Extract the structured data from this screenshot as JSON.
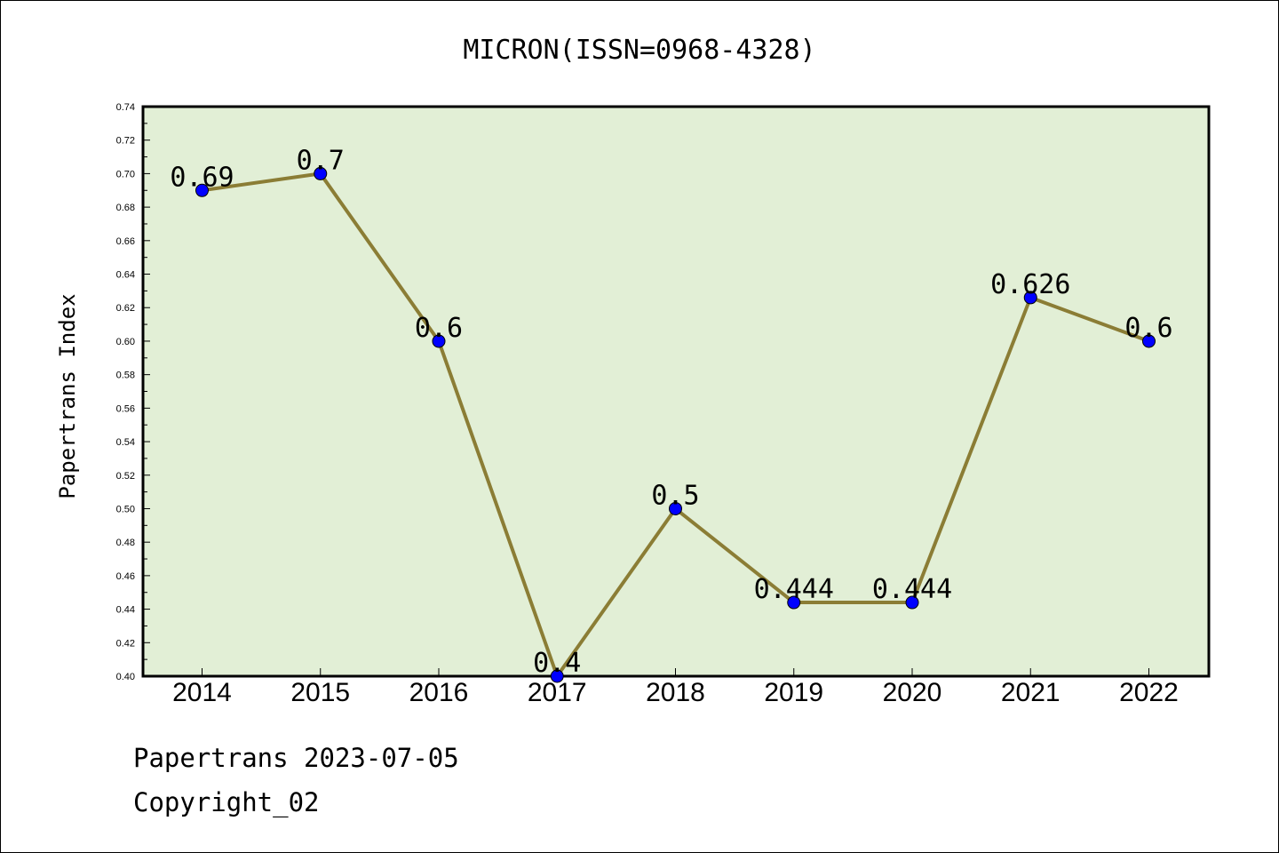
{
  "chart_data": {
    "type": "line",
    "title": "MICRON(ISSN=0968-4328)",
    "xlabel": "",
    "ylabel": "Papertrans Index",
    "categories": [
      "2014",
      "2015",
      "2016",
      "2017",
      "2018",
      "2019",
      "2020",
      "2021",
      "2022"
    ],
    "series": [
      {
        "values": [
          0.69,
          0.7,
          0.6,
          0.4,
          0.5,
          0.444,
          0.444,
          0.626,
          0.6
        ],
        "labels": [
          "0.69",
          "0.7",
          "0.6",
          "0.4",
          "0.5",
          "0.444",
          "0.444",
          "0.626",
          "0.6"
        ],
        "line_color": "#8b7d35",
        "marker_color": "#0000ff"
      }
    ],
    "ylim": [
      0.4,
      0.74
    ],
    "yticks": [
      "0.40",
      "0.42",
      "0.44",
      "0.46",
      "0.48",
      "0.50",
      "0.52",
      "0.54",
      "0.56",
      "0.58",
      "0.60",
      "0.62",
      "0.64",
      "0.66",
      "0.68",
      "0.70",
      "0.72",
      "0.74"
    ],
    "grid": false,
    "plot_background": "#e2efd6"
  },
  "footer": {
    "line1": "Papertrans 2023-07-05",
    "line2": "Copyright_02"
  }
}
